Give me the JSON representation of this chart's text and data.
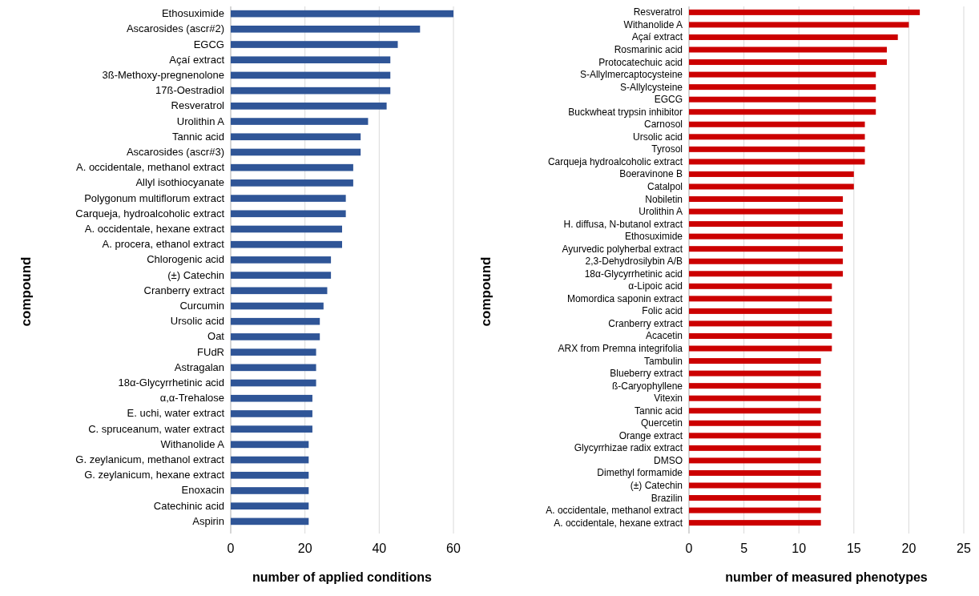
{
  "chart_data": [
    {
      "type": "bar",
      "orientation": "horizontal",
      "xlabel": "number of applied conditions",
      "ylabel": "compound",
      "categories": [
        "Ethosuximide",
        "Ascarosides (ascr#2)",
        "EGCG",
        "Açaí extract",
        "3ß-Methoxy-pregnenolone",
        "17ß-Oestradiol",
        "Resveratrol",
        "Urolithin A",
        "Tannic acid",
        "Ascarosides (ascr#3)",
        "A. occidentale, methanol extract",
        "Allyl isothiocyanate",
        "Polygonum multiflorum extract",
        "Carqueja, hydroalcoholic extract",
        "A. occidentale, hexane extract",
        "A. procera, ethanol extract",
        "Chlorogenic acid",
        "(±) Catechin",
        "Cranberry extract",
        "Curcumin",
        "Ursolic acid",
        "Oat",
        "FUdR",
        "Astragalan",
        "18α-Glycyrrhetinic acid",
        "α,α-Trehalose",
        "E. uchi, water extract",
        "C. spruceanum, water extract",
        "Withanolide A",
        "G. zeylanicum, methanol extract",
        "G. zeylanicum, hexane extract",
        "Enoxacin",
        "Catechinic acid",
        "Aspirin"
      ],
      "values": [
        60,
        51,
        45,
        43,
        43,
        43,
        42,
        37,
        35,
        35,
        33,
        33,
        31,
        31,
        30,
        30,
        27,
        27,
        26,
        25,
        24,
        24,
        23,
        23,
        23,
        22,
        22,
        22,
        21,
        21,
        21,
        21,
        21,
        21
      ],
      "color": "#2f5597",
      "xlim": [
        0,
        60
      ],
      "xticks": [
        0,
        20,
        40,
        60
      ],
      "grid": "x"
    },
    {
      "type": "bar",
      "orientation": "horizontal",
      "xlabel": "number of measured phenotypes",
      "ylabel": "compound",
      "categories": [
        "Resveratrol",
        "Withanolide A",
        "Açaí extract",
        "Rosmarinic acid",
        "Protocatechuic acid",
        "S-Allylmercaptocysteine",
        "S-Allylcysteine",
        "EGCG",
        "Buckwheat trypsin inhibitor",
        "Carnosol",
        "Ursolic acid",
        "Tyrosol",
        "Carqueja hydroalcoholic extract",
        "Boeravinone B",
        "Catalpol",
        "Nobiletin",
        "Urolithin A",
        "H. diffusa, N-butanol extract",
        "Ethosuximide",
        "Ayurvedic polyherbal extract",
        "2,3-Dehydrosilybin A/B",
        "18α-Glycyrrhetinic acid",
        "α-Lipoic acid",
        "Momordica saponin extract",
        "Folic acid",
        "Cranberry extract",
        "Acacetin",
        "ARX from Premna integrifolia",
        "Tambulin",
        "Blueberry extract",
        "ß-Caryophyllene",
        "Vitexin",
        "Tannic acid",
        "Quercetin",
        "Orange extract",
        "Glycyrrhizae radix extract",
        "DMSO",
        "Dimethyl formamide",
        "(±) Catechin",
        "Brazilin",
        "A. occidentale, methanol extract",
        "A. occidentale, hexane extract"
      ],
      "values": [
        21,
        20,
        19,
        18,
        18,
        17,
        17,
        17,
        17,
        16,
        16,
        16,
        16,
        15,
        15,
        14,
        14,
        14,
        14,
        14,
        14,
        14,
        13,
        13,
        13,
        13,
        13,
        13,
        12,
        12,
        12,
        12,
        12,
        12,
        12,
        12,
        12,
        12,
        12,
        12,
        12,
        12
      ],
      "color": "#cc0000",
      "xlim": [
        0,
        25
      ],
      "xticks": [
        0,
        5,
        10,
        15,
        20,
        25
      ],
      "grid": "x"
    }
  ]
}
